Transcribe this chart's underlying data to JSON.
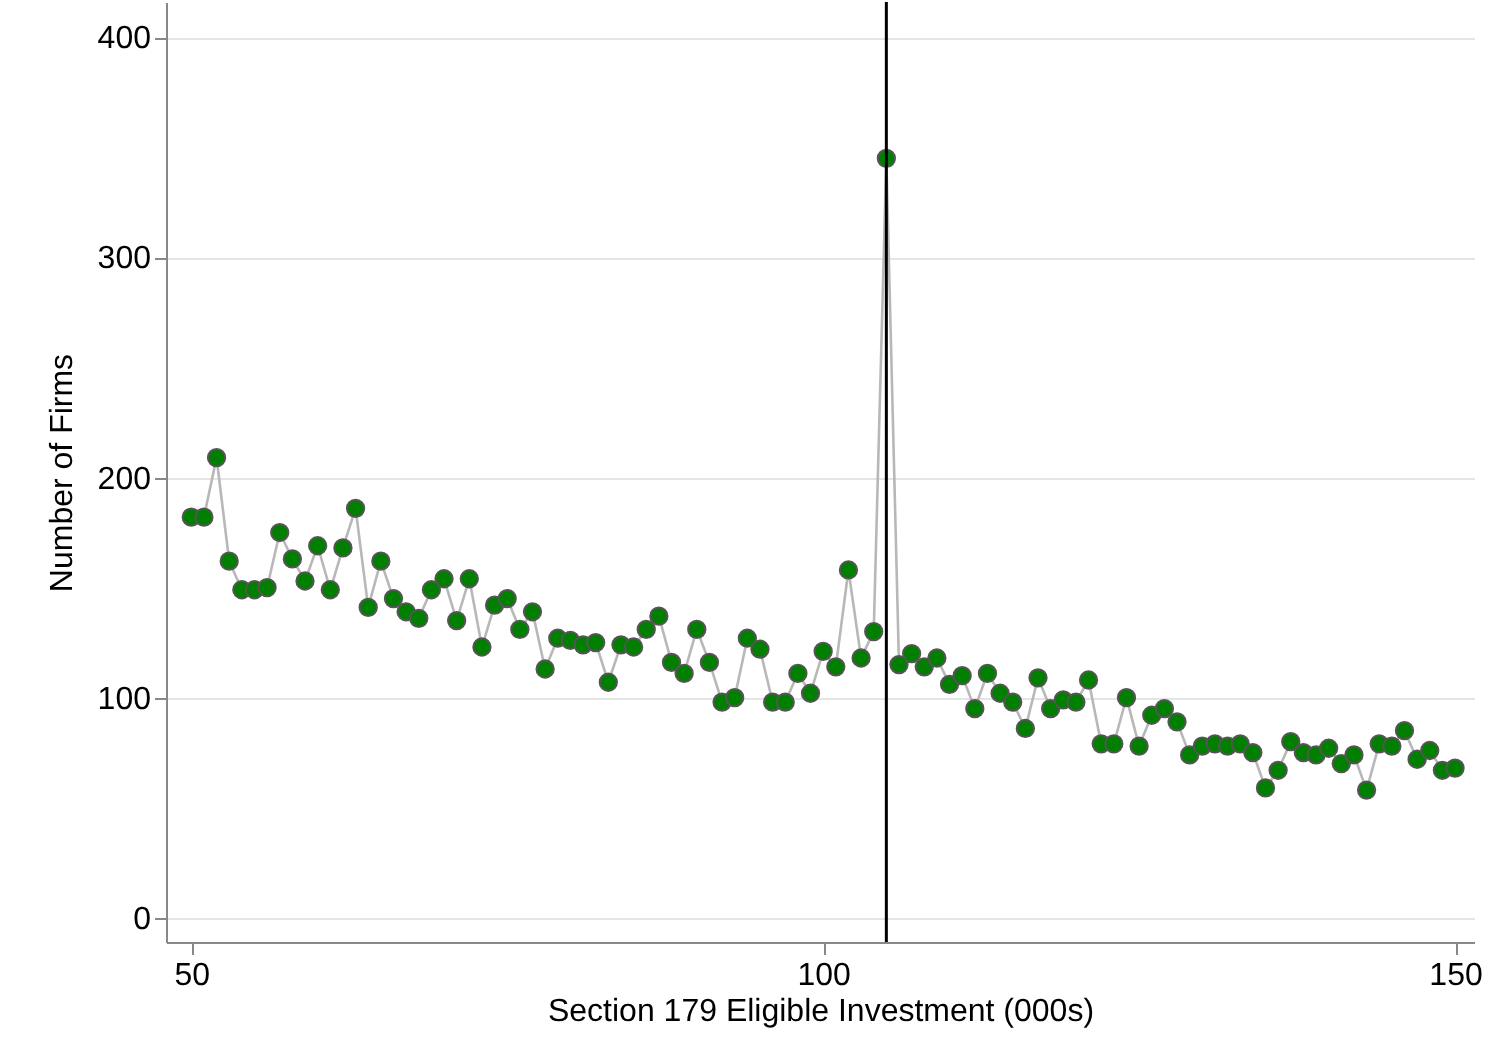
{
  "chart_data": {
    "type": "line",
    "xlabel": "Section 179 Eligible Investment (000s)",
    "ylabel": "Number of Firms",
    "x": [
      50,
      51,
      52,
      53,
      54,
      55,
      56,
      57,
      58,
      59,
      60,
      61,
      62,
      63,
      64,
      65,
      66,
      67,
      68,
      69,
      70,
      71,
      72,
      73,
      74,
      75,
      76,
      77,
      78,
      79,
      80,
      81,
      82,
      83,
      84,
      85,
      86,
      87,
      88,
      89,
      90,
      91,
      92,
      93,
      94,
      95,
      96,
      97,
      98,
      99,
      100,
      101,
      102,
      103,
      104,
      105,
      106,
      107,
      108,
      109,
      110,
      111,
      112,
      113,
      114,
      115,
      116,
      117,
      118,
      119,
      120,
      121,
      122,
      123,
      124,
      125,
      126,
      127,
      128,
      129,
      130,
      131,
      132,
      133,
      134,
      135,
      136,
      137,
      138,
      139,
      140,
      141,
      142,
      143,
      144,
      145,
      146,
      147,
      148,
      149,
      150
    ],
    "series": [
      {
        "color": "#007f00",
        "values": [
          182,
          182,
          209,
          162,
          149,
          149,
          150,
          175,
          163,
          153,
          169,
          149,
          168,
          186,
          141,
          162,
          145,
          139,
          136,
          149,
          154,
          135,
          154,
          123,
          142,
          145,
          131,
          139,
          113,
          127,
          126,
          124,
          125,
          107,
          124,
          123,
          131,
          137,
          116,
          111,
          131,
          116,
          98,
          100,
          127,
          122,
          98,
          98,
          111,
          102,
          121,
          114,
          158,
          118,
          130,
          345,
          115,
          120,
          114,
          118,
          106,
          110,
          95,
          111,
          102,
          98,
          86,
          109,
          95,
          99,
          98,
          108,
          79,
          79,
          100,
          78,
          92,
          95,
          89,
          74,
          78,
          79,
          78,
          79,
          75,
          59,
          67,
          80,
          75,
          74,
          77,
          70,
          74,
          58,
          79,
          78,
          85,
          72,
          76,
          67,
          68
        ]
      }
    ],
    "marker": "circle",
    "xlim": [
      48,
      151.5
    ],
    "ylim": [
      -11,
      416
    ],
    "xticks": [
      50,
      100,
      150
    ],
    "yticks": [
      0,
      100,
      200,
      300,
      400
    ],
    "grid": "y",
    "ref_lines": [
      {
        "axis": "x",
        "value": 105,
        "color": "#000000"
      }
    ]
  }
}
